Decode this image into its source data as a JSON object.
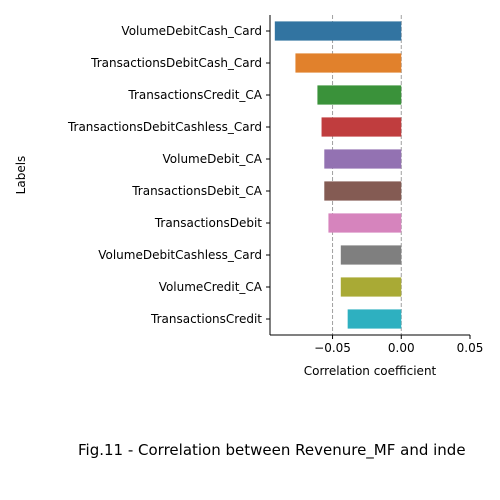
{
  "chart_data": {
    "type": "bar",
    "orientation": "horizontal",
    "categories": [
      "VolumeDebitCash_Card",
      "TransactionsDebitCash_Card",
      "TransactionsCredit_CA",
      "TransactionsDebitCashless_Card",
      "VolumeDebit_CA",
      "TransactionsDebit_CA",
      "TransactionsDebit",
      "VolumeDebitCashless_Card",
      "VolumeCredit_CA",
      "TransactionsCredit"
    ],
    "values": [
      -0.092,
      -0.077,
      -0.061,
      -0.058,
      -0.056,
      -0.056,
      -0.053,
      -0.044,
      -0.044,
      -0.039
    ],
    "colors": [
      "#3274a1",
      "#e1812c",
      "#3a923a",
      "#c03d3e",
      "#9372b2",
      "#845b53",
      "#d684bd",
      "#7f7f7f",
      "#a9aa35",
      "#2eb0c0"
    ],
    "xlabel": "Correlation coefficient",
    "ylabel": "Labels",
    "xlim": [
      -0.0955,
      0.05
    ],
    "xticks": [
      -0.05,
      0.0,
      0.05
    ],
    "xtick_labels": [
      "−0.05",
      "0.00",
      "0.05"
    ],
    "reference_lines": [
      -0.05,
      0.0
    ],
    "caption": "Fig.11 - Correlation between Revenure_MF and inde"
  }
}
